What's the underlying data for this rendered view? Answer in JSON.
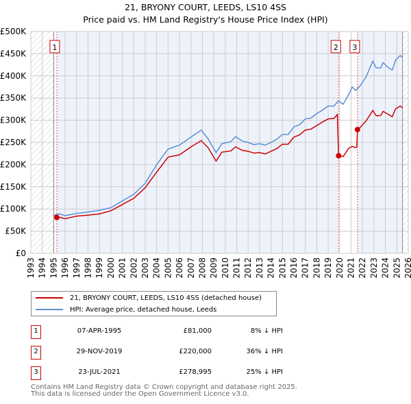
{
  "title": "21, BRYONY COURT, LEEDS, LS10 4SS",
  "subtitle": "Price paid vs. HM Land Registry's House Price Index (HPI)",
  "colors": {
    "property": "#cc0000",
    "hpi": "#5b8fd4",
    "shade": "#eef2fb"
  },
  "chart_data": {
    "type": "line",
    "title": "21, BRYONY COURT, LEEDS, LS10 4SS",
    "xlim": [
      1993,
      2026
    ],
    "ylim": [
      0,
      500000
    ],
    "xticks": [
      "1993",
      "1994",
      "1995",
      "1996",
      "1997",
      "1998",
      "1999",
      "2000",
      "2001",
      "2002",
      "2003",
      "2004",
      "2005",
      "2006",
      "2007",
      "2008",
      "2009",
      "2010",
      "2011",
      "2012",
      "2013",
      "2014",
      "2015",
      "2016",
      "2017",
      "2018",
      "2019",
      "2020",
      "2021",
      "2022",
      "2023",
      "2024",
      "2025",
      "2026"
    ],
    "yticks": [
      {
        "v": 0,
        "l": "£0"
      },
      {
        "v": 50000,
        "l": "£50K"
      },
      {
        "v": 100000,
        "l": "£100K"
      },
      {
        "v": 150000,
        "l": "£150K"
      },
      {
        "v": 200000,
        "l": "£200K"
      },
      {
        "v": 250000,
        "l": "£250K"
      },
      {
        "v": 300000,
        "l": "£300K"
      },
      {
        "v": 350000,
        "l": "£350K"
      },
      {
        "v": 400000,
        "l": "£400K"
      },
      {
        "v": 450000,
        "l": "£450K"
      },
      {
        "v": 500000,
        "l": "£500K"
      }
    ],
    "grid": true,
    "hatched_before": 1995.0,
    "hatched_after": 2025.5,
    "series": [
      {
        "name": "21, BRYONY COURT, LEEDS, LS10 4SS (detached house)",
        "color": "#cc0000",
        "x": [
          1995.27,
          1995.6,
          1996,
          1997,
          1998,
          1999,
          2000,
          2001,
          2002,
          2003,
          2004,
          2005,
          2006,
          2007,
          2007.9,
          2008.5,
          2009.2,
          2009.7,
          2010.5,
          2010.9,
          2011.5,
          2012,
          2012.5,
          2013,
          2013.5,
          2014,
          2014.5,
          2015,
          2015.5,
          2016,
          2016.5,
          2017,
          2017.5,
          2018,
          2018.5,
          2019,
          2019.5,
          2019.8,
          2019.91,
          2020.3,
          2020.8,
          2021.1,
          2021.4,
          2021.5,
          2021.56,
          2021.8,
          2022.3,
          2022.9,
          2023.2,
          2023.6,
          2023.8,
          2024.2,
          2024.6,
          2024.9,
          2025.3,
          2025.5
        ],
        "y": [
          81,
          81,
          78,
          84,
          86,
          89,
          96,
          110,
          124,
          148,
          183,
          217,
          222,
          240,
          254,
          238,
          208,
          228,
          231,
          240,
          232,
          230,
          226,
          227,
          224,
          230,
          236,
          246,
          246,
          262,
          267,
          278,
          280,
          288,
          296,
          303,
          304,
          313,
          220,
          218,
          237,
          241,
          238,
          240,
          279,
          284,
          298,
          322,
          310,
          311,
          320,
          314,
          308,
          326,
          332,
          328
        ]
      },
      {
        "name": "HPI: Average price, detached house, Leeds",
        "color": "#5b8fd4",
        "x": [
          1995.0,
          1995.5,
          1996,
          1997,
          1998,
          1999,
          2000,
          2001,
          2002,
          2003,
          2004,
          2005,
          2006,
          2007,
          2007.9,
          2008.5,
          2009.2,
          2009.7,
          2010.5,
          2010.9,
          2011.5,
          2012,
          2012.5,
          2013,
          2013.5,
          2014,
          2014.5,
          2015,
          2015.5,
          2016,
          2016.5,
          2017,
          2017.5,
          2018,
          2018.5,
          2019,
          2019.5,
          2019.9,
          2020.3,
          2020.8,
          2021.1,
          2021.4,
          2021.8,
          2022.3,
          2022.9,
          2023.2,
          2023.6,
          2023.8,
          2024.2,
          2024.6,
          2024.9,
          2025.3,
          2025.5
        ],
        "y": [
          86,
          89,
          85,
          90,
          93,
          97,
          103,
          118,
          133,
          158,
          200,
          235,
          244,
          262,
          278,
          258,
          227,
          247,
          252,
          263,
          253,
          250,
          245,
          247,
          244,
          250,
          257,
          268,
          268,
          285,
          290,
          303,
          305,
          315,
          323,
          332,
          332,
          344,
          336,
          358,
          375,
          367,
          378,
          397,
          433,
          418,
          418,
          430,
          420,
          413,
          436,
          446,
          441
        ]
      }
    ],
    "sales": [
      {
        "label": "1",
        "x": 1995.27,
        "y": 81
      },
      {
        "label": "2",
        "x": 2019.91,
        "y": 220
      },
      {
        "label": "3",
        "x": 2021.56,
        "y": 279
      }
    ],
    "y_unit": "thousand GBP"
  },
  "legend": {
    "property": "21, BRYONY COURT, LEEDS, LS10 4SS (detached house)",
    "hpi": "HPI: Average price, detached house, Leeds"
  },
  "transactions": [
    {
      "num": "1",
      "date": "07-APR-1995",
      "price": "£81,000",
      "hpi": "8% ↓ HPI"
    },
    {
      "num": "2",
      "date": "29-NOV-2019",
      "price": "£220,000",
      "hpi": "36% ↓ HPI"
    },
    {
      "num": "3",
      "date": "23-JUL-2021",
      "price": "£278,995",
      "hpi": "25% ↓ HPI"
    }
  ],
  "footer": {
    "line1": "Contains HM Land Registry data © Crown copyright and database right 2025.",
    "line2": "This data is licensed under the Open Government Licence v3.0."
  }
}
